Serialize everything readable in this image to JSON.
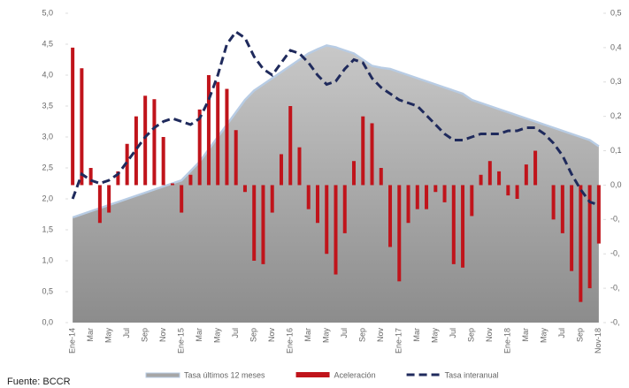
{
  "chart_data": {
    "type": "combo",
    "source": "Fuente: BCCR",
    "categories": [
      "Ene-14",
      null,
      "Mar",
      null,
      "May",
      null,
      "Jul",
      null,
      "Sep",
      null,
      "Nov",
      null,
      "Ene-15",
      null,
      "Mar",
      null,
      "May",
      null,
      "Jul",
      null,
      "Sep",
      null,
      "Nov",
      null,
      "Ene-16",
      null,
      "Mar",
      null,
      "May",
      null,
      "Jul",
      null,
      "Sep",
      null,
      "Nov",
      null,
      "Ene-17",
      null,
      "Mar",
      null,
      "May",
      null,
      "Jul",
      null,
      "Sep",
      null,
      "Nov",
      null,
      "Ene-18",
      null,
      "Mar",
      null,
      "May",
      null,
      "Jul",
      null,
      "Sep",
      null,
      "Nov-18"
    ],
    "ylim": [
      0,
      5
    ],
    "yticks": [
      {
        "value": 0,
        "label": "0,0"
      },
      {
        "value": 0.5,
        "label": "0,5"
      },
      {
        "value": 1,
        "label": "1,0"
      },
      {
        "value": 1.5,
        "label": "1,5"
      },
      {
        "value": 2,
        "label": "2,0"
      },
      {
        "value": 2.5,
        "label": "2,5"
      },
      {
        "value": 3,
        "label": "3,0"
      },
      {
        "value": 3.5,
        "label": "3,5"
      },
      {
        "value": 4,
        "label": "4,0"
      },
      {
        "value": 4.5,
        "label": "4,5"
      },
      {
        "value": 5,
        "label": "5,0"
      }
    ],
    "y2lim": [
      -0.4,
      0.5
    ],
    "y2ticks": [
      {
        "value": 0.5,
        "label": "0,5"
      },
      {
        "value": 0.4,
        "label": "0,4"
      },
      {
        "value": 0.3,
        "label": "0,3"
      },
      {
        "value": 0.2,
        "label": "0,2"
      },
      {
        "value": 0.1,
        "label": "0,1"
      },
      {
        "value": 0,
        "label": "0,0"
      },
      {
        "value": -0.1,
        "label": "-0,"
      },
      {
        "value": -0.2,
        "label": "-0,"
      },
      {
        "value": -0.3,
        "label": "-0,"
      },
      {
        "value": -0.4,
        "label": "-0,"
      }
    ],
    "series": [
      {
        "name": "Tasa últimos 12 meses",
        "kind": "area",
        "color": "#a6a6a6",
        "values": [
          1.7,
          1.75,
          1.8,
          1.85,
          1.9,
          1.95,
          2.0,
          2.05,
          2.1,
          2.15,
          2.2,
          2.25,
          2.3,
          2.45,
          2.6,
          2.8,
          3.0,
          3.2,
          3.4,
          3.6,
          3.75,
          3.85,
          3.95,
          4.05,
          4.15,
          4.25,
          4.35,
          4.42,
          4.48,
          4.45,
          4.4,
          4.35,
          4.25,
          4.15,
          4.12,
          4.1,
          4.05,
          4.0,
          3.95,
          3.9,
          3.85,
          3.8,
          3.75,
          3.7,
          3.6,
          3.55,
          3.5,
          3.45,
          3.4,
          3.35,
          3.3,
          3.25,
          3.2,
          3.15,
          3.1,
          3.05,
          3.0,
          2.95,
          2.85
        ]
      },
      {
        "name": "Aceleración",
        "kind": "bar",
        "axis": "y2",
        "color": "#c0141b",
        "values": [
          0.4,
          0.34,
          0.05,
          -0.11,
          -0.08,
          0.04,
          0.12,
          0.2,
          0.26,
          0.25,
          0.14,
          0.005,
          -0.08,
          0.03,
          0.22,
          0.32,
          0.3,
          0.28,
          0.16,
          -0.02,
          -0.22,
          -0.23,
          -0.08,
          0.09,
          0.23,
          0.11,
          -0.07,
          -0.11,
          -0.2,
          -0.26,
          -0.14,
          0.07,
          0.2,
          0.18,
          0.05,
          -0.18,
          -0.28,
          -0.11,
          -0.07,
          -0.07,
          -0.02,
          -0.05,
          -0.23,
          -0.24,
          -0.09,
          0.03,
          0.07,
          0.04,
          -0.03,
          -0.04,
          0.06,
          0.1,
          0,
          -0.1,
          -0.14,
          -0.25,
          -0.34,
          -0.3,
          -0.17
        ]
      },
      {
        "name": "Tasa interanual",
        "kind": "line",
        "color": "#1f2a5c",
        "values": [
          2.0,
          2.4,
          2.3,
          2.25,
          2.3,
          2.4,
          2.6,
          2.8,
          3.0,
          3.15,
          3.25,
          3.3,
          3.25,
          3.2,
          3.3,
          3.6,
          4.0,
          4.5,
          4.7,
          4.6,
          4.3,
          4.1,
          4.0,
          4.2,
          4.4,
          4.35,
          4.2,
          4.0,
          3.85,
          3.9,
          4.1,
          4.25,
          4.2,
          3.95,
          3.8,
          3.7,
          3.6,
          3.55,
          3.5,
          3.35,
          3.2,
          3.05,
          2.95,
          2.95,
          3.0,
          3.05,
          3.05,
          3.05,
          3.1,
          3.1,
          3.15,
          3.15,
          3.05,
          2.9,
          2.7,
          2.4,
          2.15,
          1.95,
          1.9
        ]
      }
    ]
  }
}
